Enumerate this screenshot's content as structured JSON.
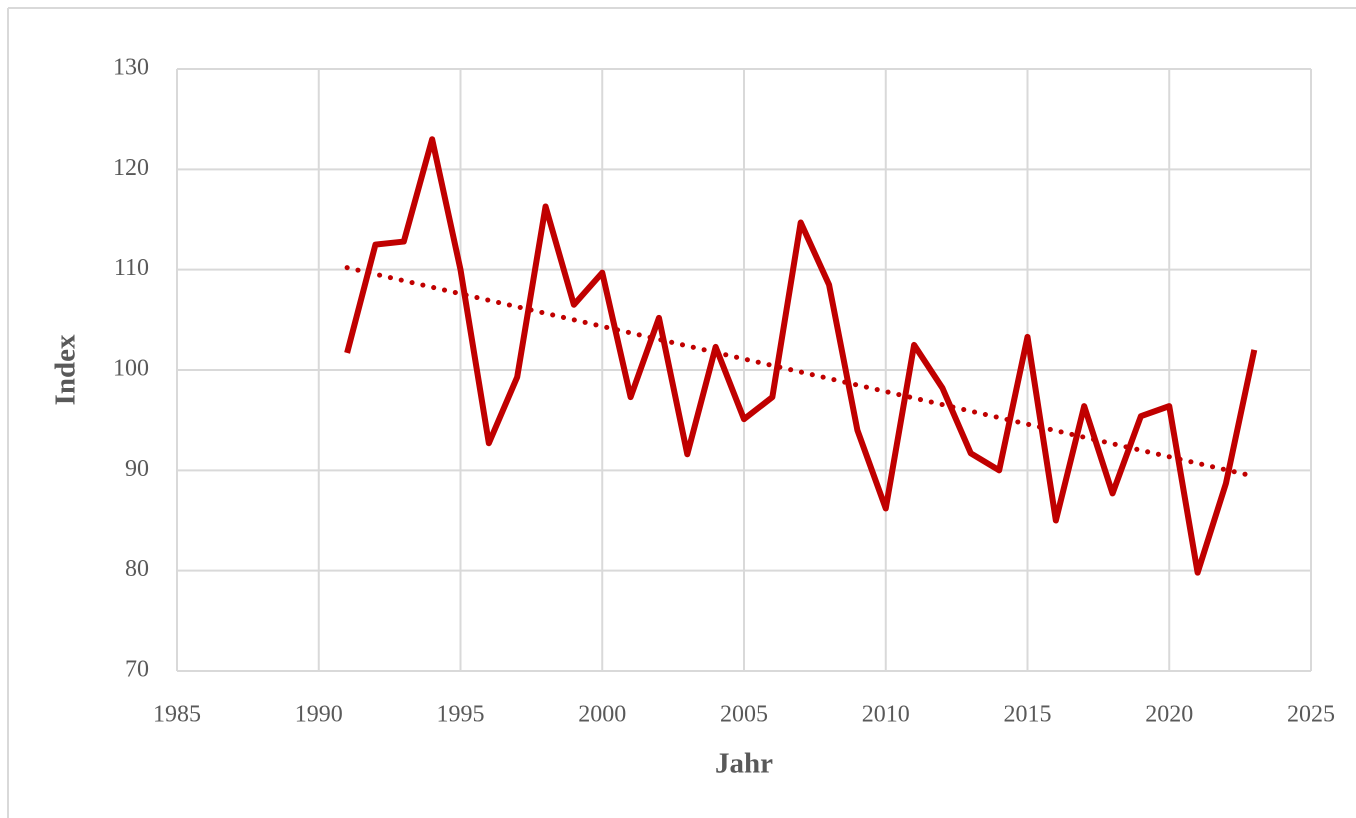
{
  "chart_data": {
    "type": "line",
    "x_label": "Jahr",
    "y_label": "Index",
    "x": [
      1991,
      1992,
      1993,
      1994,
      1995,
      1996,
      1997,
      1998,
      1999,
      2000,
      2001,
      2002,
      2003,
      2004,
      2005,
      2006,
      2007,
      2008,
      2009,
      2010,
      2011,
      2012,
      2013,
      2014,
      2015,
      2016,
      2017,
      2018,
      2019,
      2020,
      2021,
      2022,
      2023
    ],
    "values": [
      101.7,
      112.5,
      112.8,
      123,
      110,
      92.7,
      99.3,
      116.3,
      106.5,
      109.7,
      97.3,
      105.2,
      91.6,
      102.3,
      95.1,
      97.3,
      114.7,
      108.5,
      94,
      86.2,
      102.5,
      98.2,
      91.7,
      90,
      103.3,
      85,
      96.4,
      87.7,
      95.4,
      96.4,
      79.8,
      88.7,
      102
    ],
    "color": "#c00000",
    "trendline": {
      "x": [
        1991,
        2023
      ],
      "values": [
        110.2,
        89.4
      ],
      "color": "#c00000",
      "style": "dotted"
    },
    "xlim": [
      1985,
      2025
    ],
    "xticks": [
      1985,
      1990,
      1995,
      2000,
      2005,
      2010,
      2015,
      2020,
      2025
    ],
    "ylim": [
      70,
      130
    ],
    "yticks": [
      70,
      80,
      90,
      100,
      110,
      120,
      130
    ],
    "grid": true
  }
}
